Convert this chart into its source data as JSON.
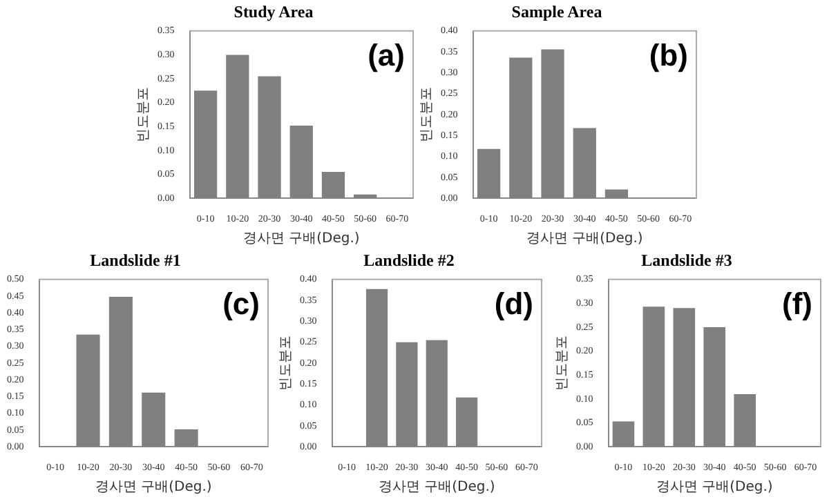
{
  "chart_data": [
    {
      "type": "bar",
      "title": "Study Area",
      "xlabel": "경사면 구배(Deg.)",
      "ylabel": "빈도분포",
      "annotations": [
        "(a)"
      ],
      "categories": [
        "0-10",
        "10-20",
        "20-30",
        "30-40",
        "40-50",
        "50-60",
        "60-70"
      ],
      "values": [
        0.225,
        0.3,
        0.255,
        0.152,
        0.055,
        0.008,
        0
      ],
      "color": "#808080",
      "ylim": [
        0,
        0.35
      ],
      "yticks": [
        {
          "value": 0,
          "label": "0.00"
        },
        {
          "value": 0.05,
          "label": "0.05"
        },
        {
          "value": 0.1,
          "label": "0.10"
        },
        {
          "value": 0.15,
          "label": "0.15"
        },
        {
          "value": 0.2,
          "label": "0.20"
        },
        {
          "value": 0.25,
          "label": "0.25"
        },
        {
          "value": 0.3,
          "label": "0.30"
        },
        {
          "value": 0.35,
          "label": "0.35"
        }
      ],
      "grid": false,
      "legend": false
    },
    {
      "type": "bar",
      "title": "Sample Area",
      "xlabel": "경사면 구배(Deg.)",
      "ylabel": "빈도분포",
      "annotations": [
        "(b)"
      ],
      "categories": [
        "0-10",
        "10-20",
        "20-30",
        "30-40",
        "40-50",
        "50-60",
        "60-70"
      ],
      "values": [
        0.118,
        0.336,
        0.356,
        0.168,
        0.021,
        0,
        0
      ],
      "color": "#808080",
      "ylim": [
        0,
        0.4
      ],
      "yticks": [
        {
          "value": 0,
          "label": "0.00"
        },
        {
          "value": 0.05,
          "label": "0.05"
        },
        {
          "value": 0.1,
          "label": "0.10"
        },
        {
          "value": 0.15,
          "label": "0.15"
        },
        {
          "value": 0.2,
          "label": "0.20"
        },
        {
          "value": 0.25,
          "label": "0.25"
        },
        {
          "value": 0.3,
          "label": "0.30"
        },
        {
          "value": 0.35,
          "label": "0.35"
        },
        {
          "value": 0.4,
          "label": "0.40"
        }
      ],
      "grid": false,
      "legend": false
    },
    {
      "type": "bar",
      "title": "Landslide #1",
      "xlabel": "경사면 구배(Deg.)",
      "annotations": [
        "(c)"
      ],
      "categories": [
        "0-10",
        "10-20",
        "20-30",
        "30-40",
        "40-50",
        "50-60",
        "60-70"
      ],
      "values": [
        0,
        0.335,
        0.448,
        0.162,
        0.052,
        0,
        0
      ],
      "color": "#808080",
      "ylim": [
        0,
        0.5
      ],
      "yticks": [
        {
          "value": 0,
          "label": "0.00"
        },
        {
          "value": 0.05,
          "label": "0.05"
        },
        {
          "value": 0.1,
          "label": "0.10"
        },
        {
          "value": 0.15,
          "label": "0.15"
        },
        {
          "value": 0.2,
          "label": "0.20"
        },
        {
          "value": 0.25,
          "label": "0.25"
        },
        {
          "value": 0.3,
          "label": "0.30"
        },
        {
          "value": 0.35,
          "label": "0.35"
        },
        {
          "value": 0.4,
          "label": "0.40"
        },
        {
          "value": 0.45,
          "label": "0.45"
        },
        {
          "value": 0.5,
          "label": "0.50"
        }
      ],
      "grid": false,
      "legend": false
    },
    {
      "type": "bar",
      "title": "Landslide #2",
      "xlabel": "경사면 구배(Deg.)",
      "ylabel": "빈도분포",
      "annotations": [
        "(d)"
      ],
      "categories": [
        "0-10",
        "10-20",
        "20-30",
        "30-40",
        "40-50",
        "50-60",
        "60-70"
      ],
      "values": [
        0,
        0.377,
        0.25,
        0.255,
        0.118,
        0,
        0
      ],
      "color": "#808080",
      "ylim": [
        0,
        0.4
      ],
      "yticks": [
        {
          "value": 0,
          "label": "0.00"
        },
        {
          "value": 0.05,
          "label": "0.05"
        },
        {
          "value": 0.1,
          "label": "0.10"
        },
        {
          "value": 0.15,
          "label": "0.15"
        },
        {
          "value": 0.2,
          "label": "0.20"
        },
        {
          "value": 0.25,
          "label": "0.25"
        },
        {
          "value": 0.3,
          "label": "0.30"
        },
        {
          "value": 0.35,
          "label": "0.35"
        },
        {
          "value": 0.4,
          "label": "0.40"
        }
      ],
      "grid": false,
      "legend": false
    },
    {
      "type": "bar",
      "title": "Landslide #3",
      "xlabel": "경사면 구배(Deg.)",
      "ylabel": "빈도분포",
      "annotations": [
        "(f)"
      ],
      "categories": [
        "0-10",
        "10-20",
        "20-30",
        "30-40",
        "40-50",
        "50-60",
        "60-70"
      ],
      "values": [
        0.053,
        0.293,
        0.29,
        0.25,
        0.11,
        0,
        0
      ],
      "color": "#808080",
      "ylim": [
        0,
        0.35
      ],
      "yticks": [
        {
          "value": 0,
          "label": "0.00"
        },
        {
          "value": 0.05,
          "label": "0.05"
        },
        {
          "value": 0.1,
          "label": "0.10"
        },
        {
          "value": 0.15,
          "label": "0.15"
        },
        {
          "value": 0.2,
          "label": "0.20"
        },
        {
          "value": 0.25,
          "label": "0.25"
        },
        {
          "value": 0.3,
          "label": "0.30"
        },
        {
          "value": 0.35,
          "label": "0.35"
        }
      ],
      "grid": false,
      "legend": false
    }
  ]
}
